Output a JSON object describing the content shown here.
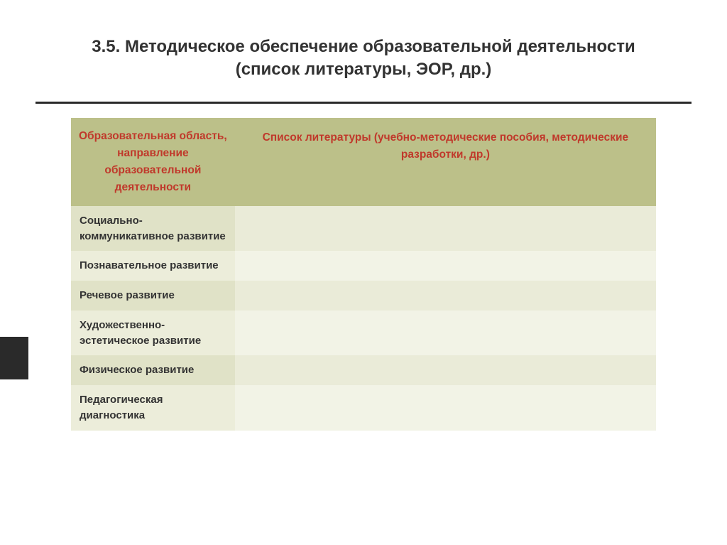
{
  "title": "3.5. Методическое обеспечение образовательной деятельности (список литературы, ЭОР, др.)",
  "table": {
    "columns": [
      "Образовательная область, направление образовательной деятельности",
      "Список литературы (учебно-методические пособия, методические разработки, др.)"
    ],
    "rows": [
      {
        "label": "Социально-коммуникативное развитие",
        "value": ""
      },
      {
        "label": "Познавательное развитие",
        "value": ""
      },
      {
        "label": "Речевое развитие",
        "value": ""
      },
      {
        "label": "Художественно-эстетическое развитие",
        "value": ""
      },
      {
        "label": "Физическое развитие",
        "value": ""
      },
      {
        "label": "Педагогическая диагностика",
        "value": ""
      }
    ],
    "header_bg": "#bcc089",
    "header_color": "#c0392b",
    "row_even_left": "#e0e2c7",
    "row_even_right": "#eaebd8",
    "row_odd_left": "#ecedda",
    "row_odd_right": "#f2f3e6",
    "col_widths": [
      "28%",
      "72%"
    ],
    "header_fontsize": 15.5,
    "cell_fontsize": 15
  },
  "title_fontsize": 24,
  "divider_color": "#2a2a2a",
  "sidebar_accent_color": "#2a2a2a",
  "background_color": "#ffffff"
}
